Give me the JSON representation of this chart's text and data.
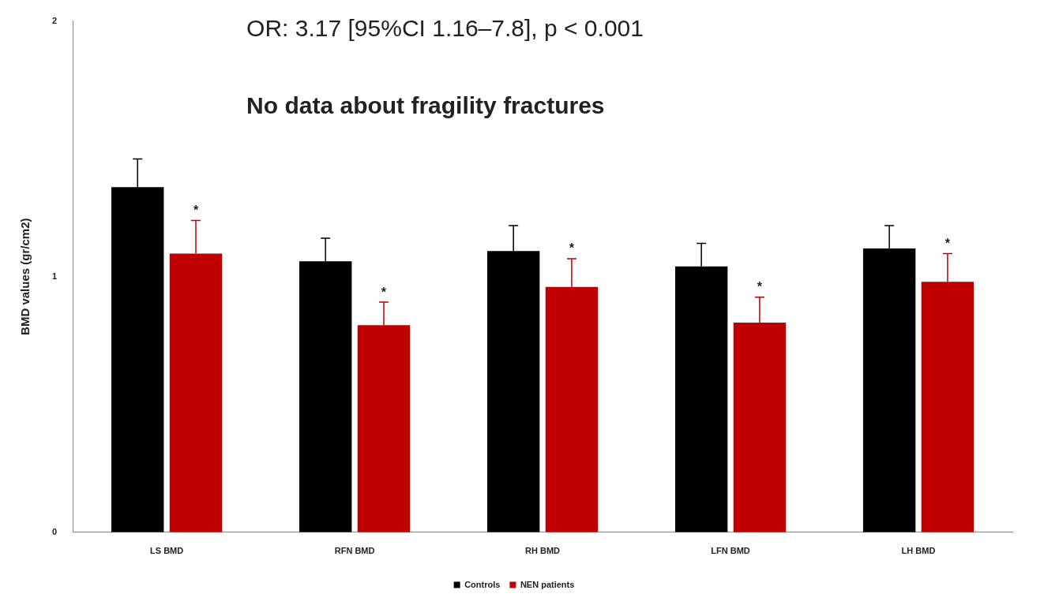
{
  "chart_data": {
    "type": "bar",
    "ylabel": "BMD values (gr/cm2)",
    "categories": [
      "LS BMD",
      "RFN BMD",
      "RH BMD",
      "LFN BMD",
      "LH BMD"
    ],
    "series": [
      {
        "name": "Controls",
        "color": "#000000",
        "values": [
          1.35,
          1.06,
          1.1,
          1.04,
          1.11
        ],
        "errors": [
          [
            1.35,
            1.46
          ],
          [
            1.06,
            1.15
          ],
          [
            1.1,
            1.2
          ],
          [
            1.04,
            1.13
          ],
          [
            1.11,
            1.2
          ]
        ]
      },
      {
        "name": "NEN patients",
        "color": "#c00000",
        "values": [
          1.09,
          0.81,
          0.96,
          0.82,
          0.98
        ],
        "errors": [
          [
            1.09,
            1.22
          ],
          [
            0.81,
            0.9
          ],
          [
            0.96,
            1.07
          ],
          [
            0.82,
            0.92
          ],
          [
            0.98,
            1.09
          ]
        ]
      }
    ],
    "ylim": [
      0,
      2
    ],
    "yticks": [
      0,
      1,
      2
    ],
    "grid": false,
    "legend": "bottom",
    "annotations": [
      "OR: 3.17 [95%CI 1.16–7.8], p < 0.001",
      "No data about fragility fractures",
      {
        "text": "*",
        "x": "LS BMD",
        "y": 1.22
      },
      {
        "text": "*",
        "x": "RFN BMD",
        "y": 0.9
      },
      {
        "text": "*",
        "x": "RH BMD",
        "y": 1.07
      },
      {
        "text": "*",
        "x": "LFN BMD",
        "y": 0.92
      },
      {
        "text": "*",
        "x": "LH BMD",
        "y": 1.09
      }
    ]
  }
}
